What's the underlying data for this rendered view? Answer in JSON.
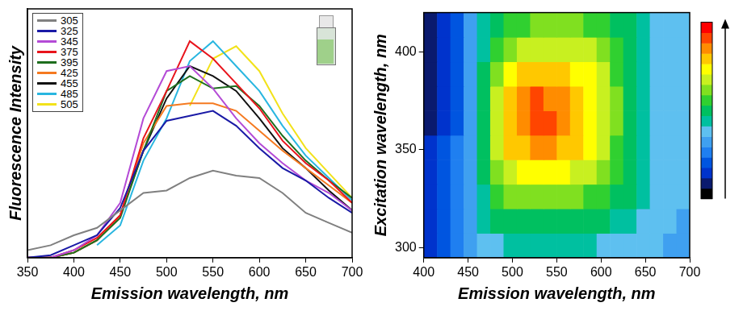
{
  "chart_data": [
    {
      "type": "line",
      "x_label": "Emission wavelength, nm",
      "y_label": "Fluorescence Intensity",
      "x": [
        350,
        375,
        400,
        425,
        450,
        475,
        500,
        525,
        550,
        575,
        600,
        625,
        650,
        675,
        700
      ],
      "series": [
        {
          "name": "305",
          "color": "#808080",
          "values": [
            3,
            5,
            9,
            12,
            19,
            26,
            27,
            32,
            35,
            33,
            32,
            26,
            18,
            14,
            10
          ]
        },
        {
          "name": "325",
          "color": "#1a1aa6",
          "values": [
            0,
            1,
            5,
            9,
            20,
            43,
            55,
            57,
            59,
            53,
            44,
            36,
            31,
            24,
            18
          ]
        },
        {
          "name": "345",
          "color": "#b44bd6",
          "values": [
            0,
            0,
            3,
            9,
            22,
            56,
            75,
            77,
            68,
            56,
            46,
            38,
            31,
            26,
            19
          ]
        },
        {
          "name": "375",
          "color": "#e8141c",
          "values": [
            0,
            0,
            3,
            8,
            17,
            48,
            67,
            87,
            80,
            70,
            60,
            47,
            38,
            31,
            22
          ]
        },
        {
          "name": "395",
          "color": "#1e6e1e",
          "values": [
            0,
            0,
            2,
            7,
            16,
            43,
            67,
            73,
            68,
            69,
            61,
            49,
            39,
            31,
            24
          ]
        },
        {
          "name": "425",
          "color": "#f57a20",
          "values": [
            0,
            0,
            2,
            7,
            17,
            46,
            61,
            62,
            62,
            59,
            51,
            43,
            36,
            29,
            22
          ]
        },
        {
          "name": "455",
          "color": "#111111",
          "values": [
            0,
            0,
            2,
            7,
            17,
            43,
            64,
            77,
            73,
            67,
            56,
            44,
            36,
            27,
            19
          ]
        },
        {
          "name": "485",
          "color": "#29b6e0",
          "values": [
            null,
            null,
            null,
            5,
            13,
            39,
            56,
            79,
            87,
            77,
            67,
            53,
            41,
            32,
            23
          ]
        },
        {
          "name": "505",
          "color": "#f2e21a",
          "values": [
            null,
            null,
            null,
            null,
            null,
            null,
            null,
            61,
            80,
            85,
            75,
            58,
            44,
            34,
            24
          ]
        }
      ],
      "xlim": [
        350,
        700
      ],
      "xticks": [
        350,
        400,
        450,
        500,
        550,
        600,
        650,
        700
      ],
      "ylim": [
        0,
        100
      ],
      "tick_labels": "x",
      "grid": false,
      "legend": "upper left"
    },
    {
      "type": "heatmap",
      "x_label": "Emission wavelength, nm",
      "y_label": "Excitation wavelength, nm",
      "xlim": [
        400,
        700
      ],
      "xticks": [
        400,
        450,
        500,
        550,
        600,
        650,
        700
      ],
      "ylim": [
        295,
        420
      ],
      "yticks": [
        300,
        350,
        400
      ],
      "grid": false,
      "cells": {
        "x_bins": [
          400,
          415,
          430,
          445,
          460,
          475,
          490,
          505,
          520,
          535,
          550,
          565,
          580,
          595,
          610,
          625,
          640,
          655,
          670,
          685,
          700
        ],
        "y_bins": [
          295,
          307.5,
          320,
          332.5,
          345,
          357.5,
          370,
          382.5,
          395,
          407.5,
          420
        ],
        "values": [
          [
            2,
            3,
            4,
            5,
            6,
            6,
            7,
            7,
            7,
            7,
            7,
            7,
            7,
            6,
            6,
            6,
            6,
            6,
            5,
            5
          ],
          [
            2,
            3,
            4,
            5,
            7,
            8,
            8,
            8,
            8,
            8,
            8,
            8,
            8,
            8,
            7,
            7,
            6,
            6,
            6,
            5
          ],
          [
            2,
            3,
            4,
            5,
            7,
            9,
            10,
            10,
            10,
            10,
            10,
            10,
            9,
            9,
            8,
            8,
            7,
            6,
            6,
            6
          ],
          [
            2,
            3,
            4,
            5,
            8,
            10,
            11,
            12,
            12,
            12,
            12,
            11,
            11,
            10,
            9,
            8,
            7,
            6,
            6,
            6
          ],
          [
            2,
            3,
            4,
            5,
            8,
            11,
            13,
            13,
            14,
            14,
            13,
            13,
            12,
            11,
            9,
            8,
            7,
            6,
            6,
            6
          ],
          [
            1,
            2,
            3,
            5,
            8,
            11,
            13,
            14,
            15,
            15,
            14,
            13,
            12,
            11,
            10,
            8,
            7,
            6,
            6,
            6
          ],
          [
            1,
            2,
            3,
            5,
            8,
            11,
            13,
            14,
            15,
            14,
            14,
            13,
            12,
            11,
            10,
            8,
            7,
            6,
            6,
            6
          ],
          [
            1,
            2,
            3,
            5,
            8,
            10,
            12,
            13,
            13,
            13,
            13,
            12,
            12,
            11,
            9,
            8,
            7,
            6,
            6,
            6
          ],
          [
            1,
            2,
            3,
            5,
            7,
            9,
            10,
            11,
            11,
            11,
            11,
            11,
            11,
            10,
            9,
            8,
            7,
            6,
            6,
            6
          ],
          [
            1,
            2,
            3,
            5,
            7,
            8,
            9,
            9,
            10,
            10,
            10,
            10,
            9,
            9,
            8,
            8,
            7,
            6,
            6,
            6
          ]
        ]
      },
      "colorbar": {
        "range": [
          0,
          17
        ],
        "colors": [
          "#000000",
          "#0a1a6e",
          "#0033cc",
          "#0055e0",
          "#1f7ff0",
          "#3fa0f0",
          "#5ec0f0",
          "#00c0a0",
          "#00c060",
          "#30d030",
          "#80e020",
          "#c8f020",
          "#ffff00",
          "#ffc800",
          "#ff8c00",
          "#ff4500",
          "#ff0000"
        ]
      }
    }
  ]
}
